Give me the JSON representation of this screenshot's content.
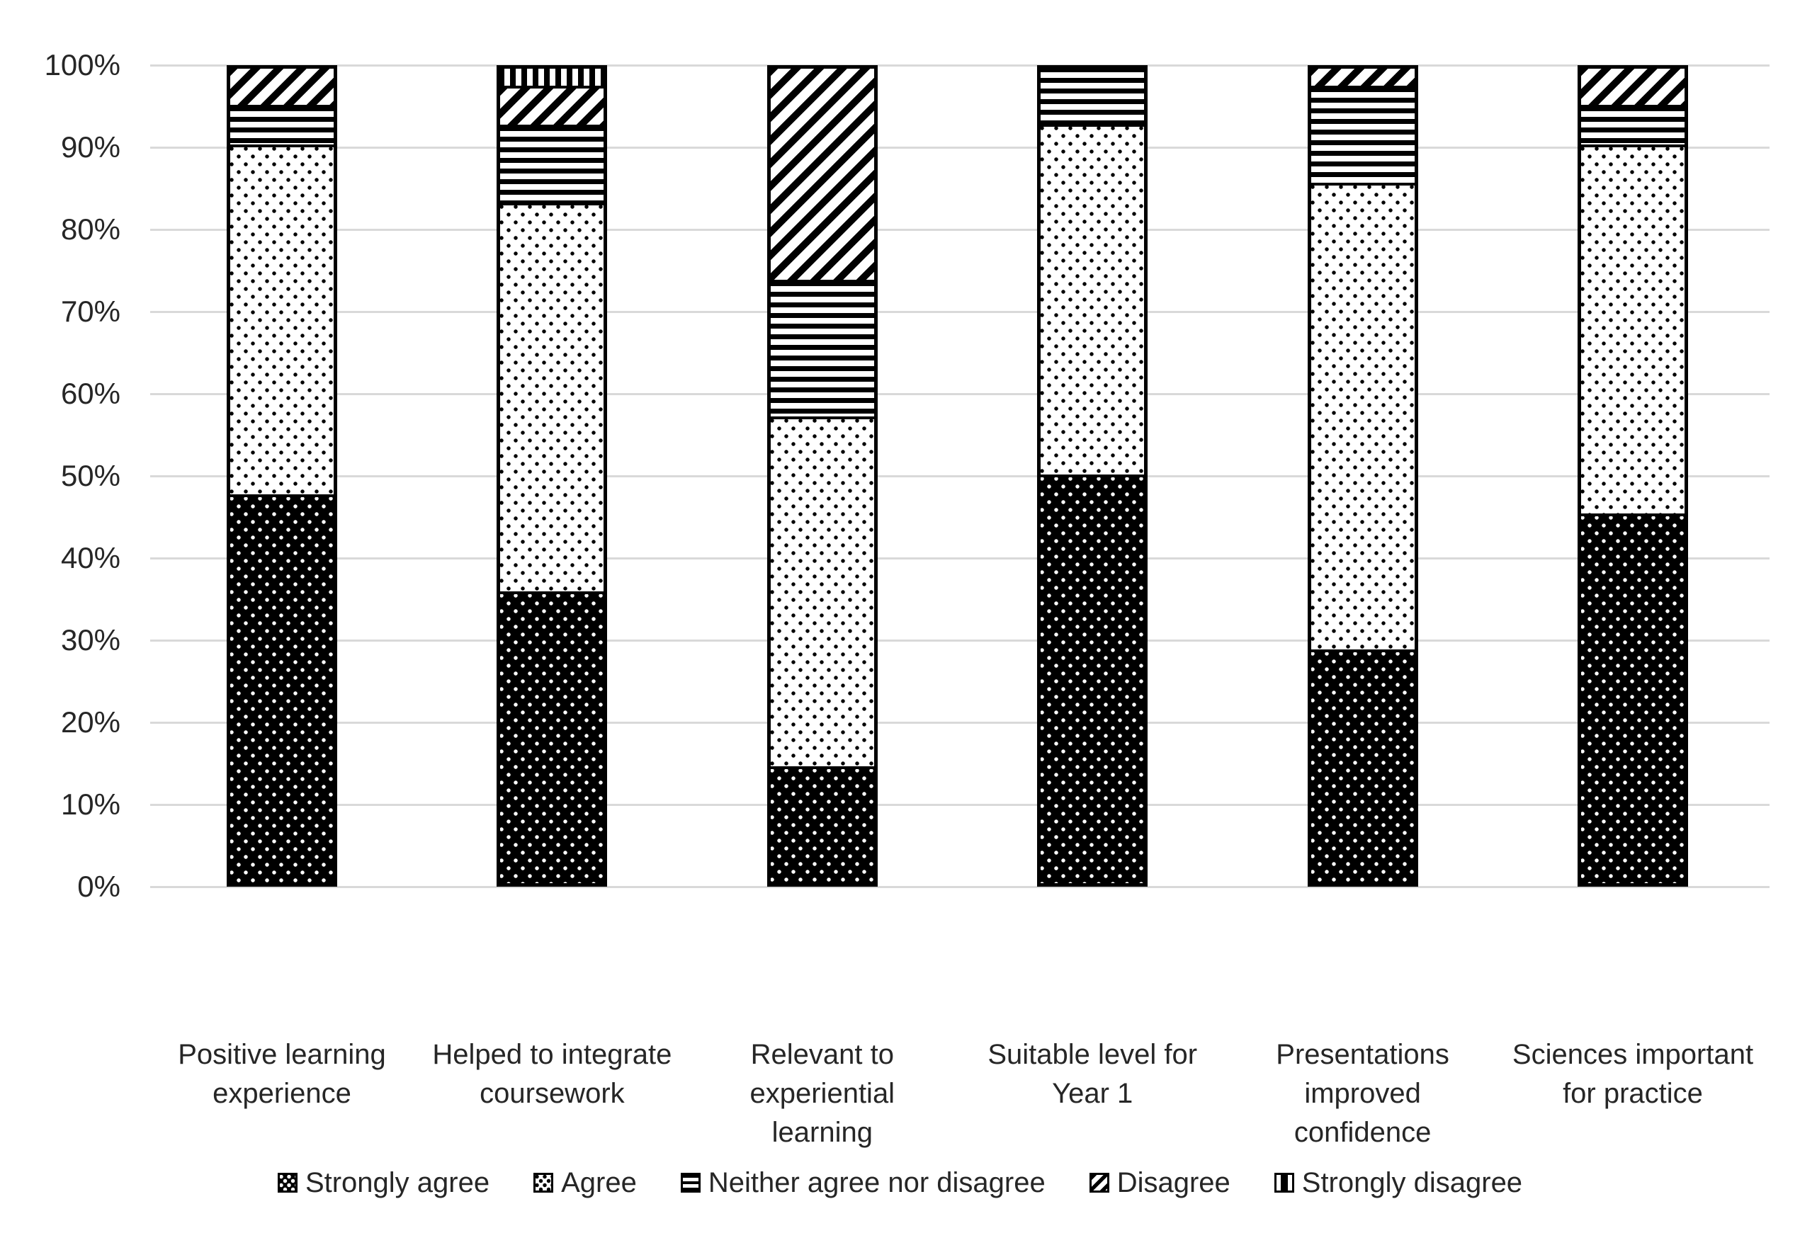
{
  "chart_data": {
    "type": "bar",
    "subtype": "percent-stacked-column",
    "title": "",
    "grid": true,
    "stack_order": "bottom-to-top",
    "categories": [
      {
        "name": "Positive learning experience",
        "label": "Positive learning\nexperience"
      },
      {
        "name": "Helped to integrate coursework",
        "label": "Helped to integrate\ncoursework"
      },
      {
        "name": "Relevant to experiential learning",
        "label": "Relevant to\nexperiential\nlearning"
      },
      {
        "name": "Suitable level for Year 1",
        "label": "Suitable level for\nYear 1"
      },
      {
        "name": "Presentations improved confidence",
        "label": "Presentations\nimproved\nconfidence"
      },
      {
        "name": "Sciences important for practice",
        "label": "Sciences important\nfor practice"
      }
    ],
    "series": [
      {
        "name": "Strongly agree",
        "pattern": "dots-on-black",
        "values": [
          47.6,
          35.7,
          14.3,
          50.0,
          28.6,
          45.2
        ]
      },
      {
        "name": "Agree",
        "pattern": "dots-on-white",
        "values": [
          42.9,
          47.6,
          42.9,
          42.9,
          57.1,
          45.2
        ]
      },
      {
        "name": "Neither agree nor disagree",
        "pattern": "horizontal-lines",
        "values": [
          4.8,
          9.5,
          16.7,
          7.1,
          11.9,
          4.8
        ]
      },
      {
        "name": "Disagree",
        "pattern": "diagonal-stripes",
        "values": [
          4.8,
          4.8,
          26.2,
          0.0,
          2.4,
          4.8
        ]
      },
      {
        "name": "Strongly disagree",
        "pattern": "vertical-stripes",
        "values": [
          0.0,
          2.4,
          0.0,
          0.0,
          0.0,
          0.0
        ]
      }
    ],
    "y_axis": {
      "min": 0,
      "max": 100,
      "step": 10,
      "ticks": [
        "0%",
        "10%",
        "20%",
        "30%",
        "40%",
        "50%",
        "60%",
        "70%",
        "80%",
        "90%",
        "100%"
      ]
    },
    "legend": {
      "position": "bottom",
      "entries": [
        "Strongly agree",
        "Agree",
        "Neither agree nor disagree",
        "Disagree",
        "Strongly disagree"
      ]
    },
    "colors": {
      "foreground": "#000000",
      "background": "#ffffff",
      "gridline": "#d9d9d9",
      "text": "#262626"
    }
  }
}
